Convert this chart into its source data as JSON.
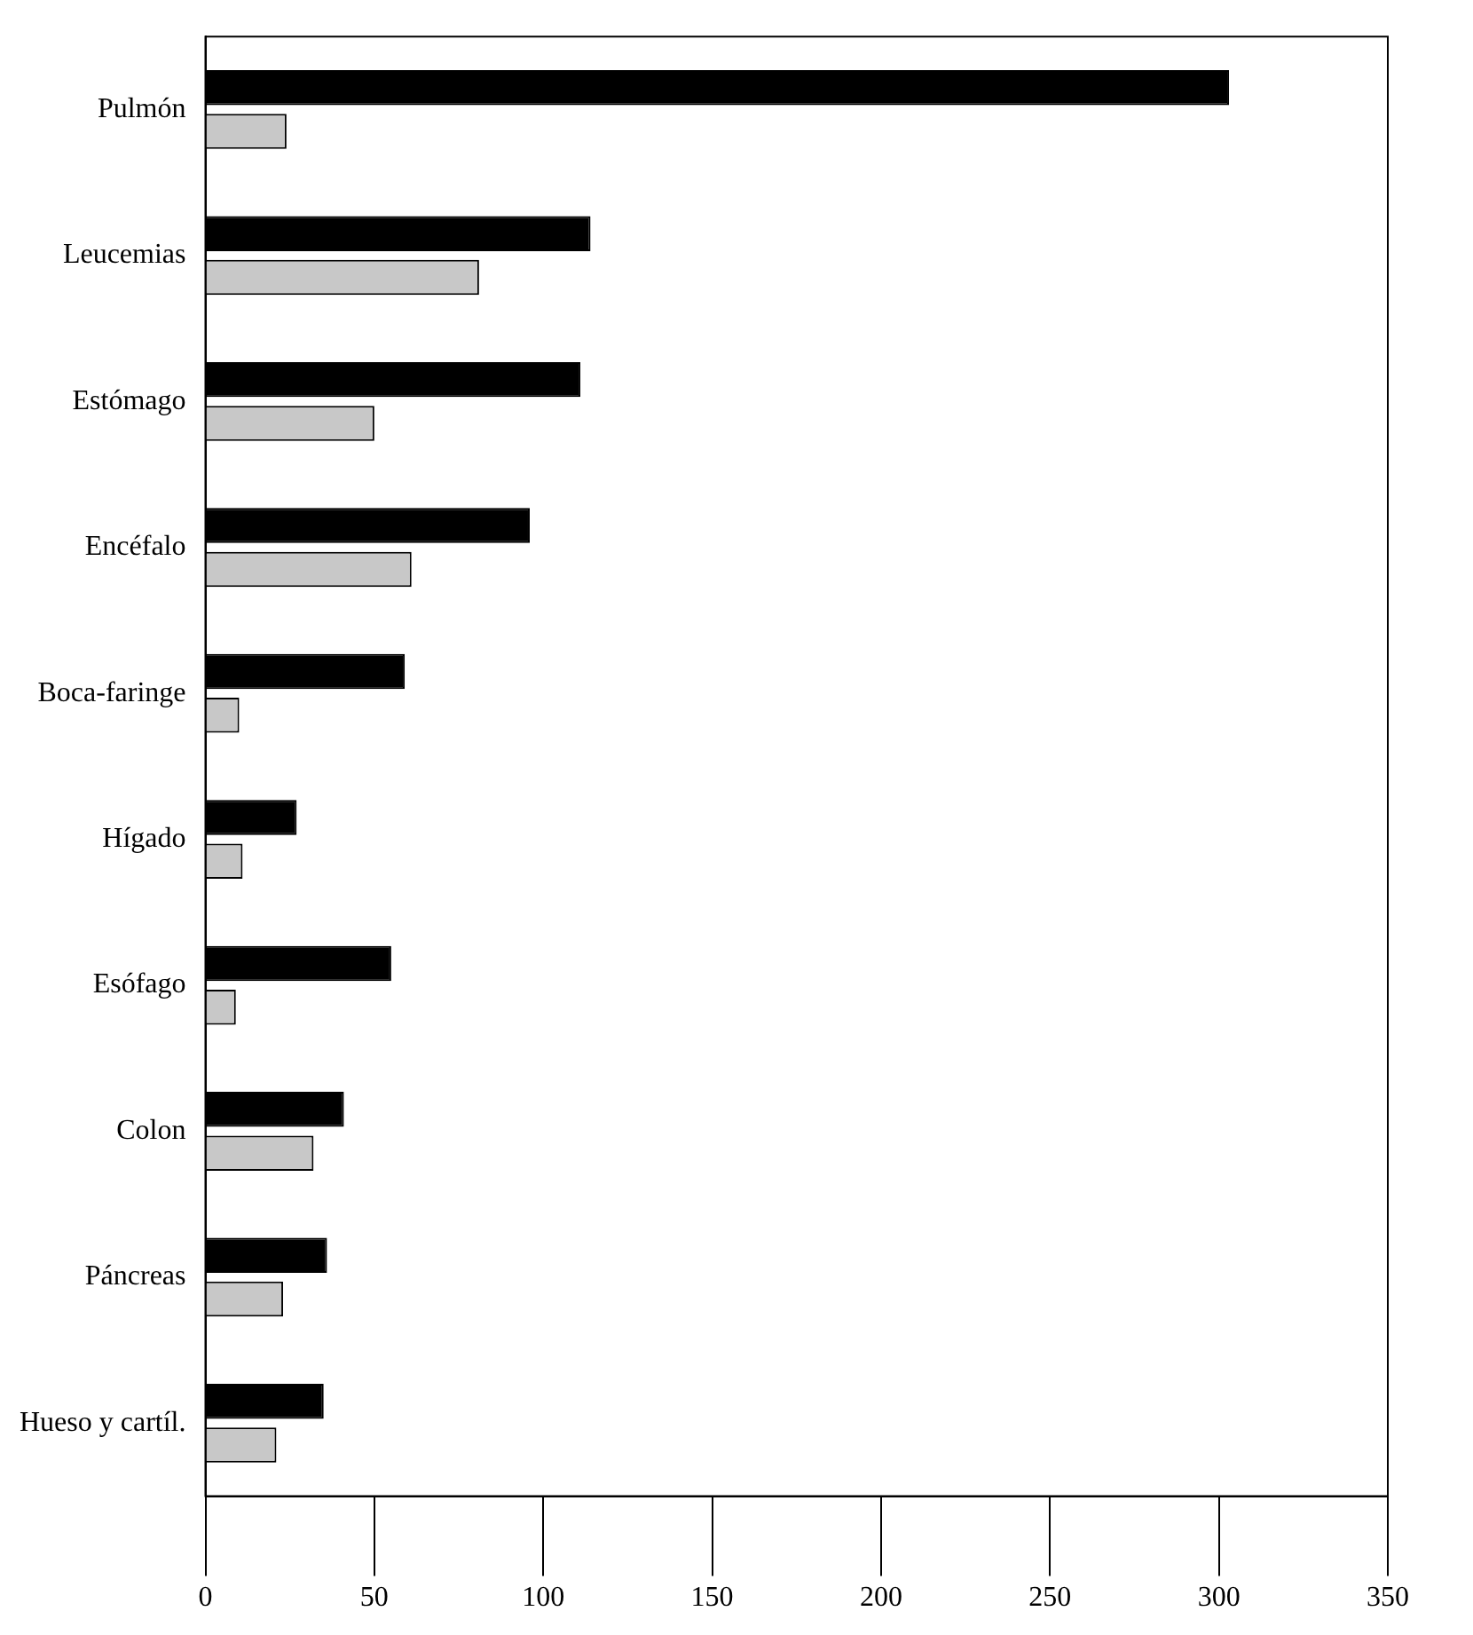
{
  "chart_data": {
    "type": "bar",
    "orientation": "horizontal",
    "categories": [
      "Pulmón",
      "Leucemias",
      "Estómago",
      "Encéfalo",
      "Boca-faringe",
      "Hígado",
      "Esófago",
      "Colon",
      "Páncreas",
      "Hueso y cartíl."
    ],
    "series": [
      {
        "color": "#000000",
        "values": [
          303,
          114,
          111,
          96,
          59,
          27,
          55,
          41,
          36,
          35
        ]
      },
      {
        "color": "#c8c8c8",
        "values": [
          24,
          81,
          50,
          61,
          10,
          11,
          9,
          32,
          23,
          21
        ]
      }
    ],
    "xlim": [
      0,
      350
    ],
    "xticks": [
      0,
      50,
      100,
      150,
      200,
      250,
      300,
      350
    ],
    "grid": false,
    "legend": false
  }
}
